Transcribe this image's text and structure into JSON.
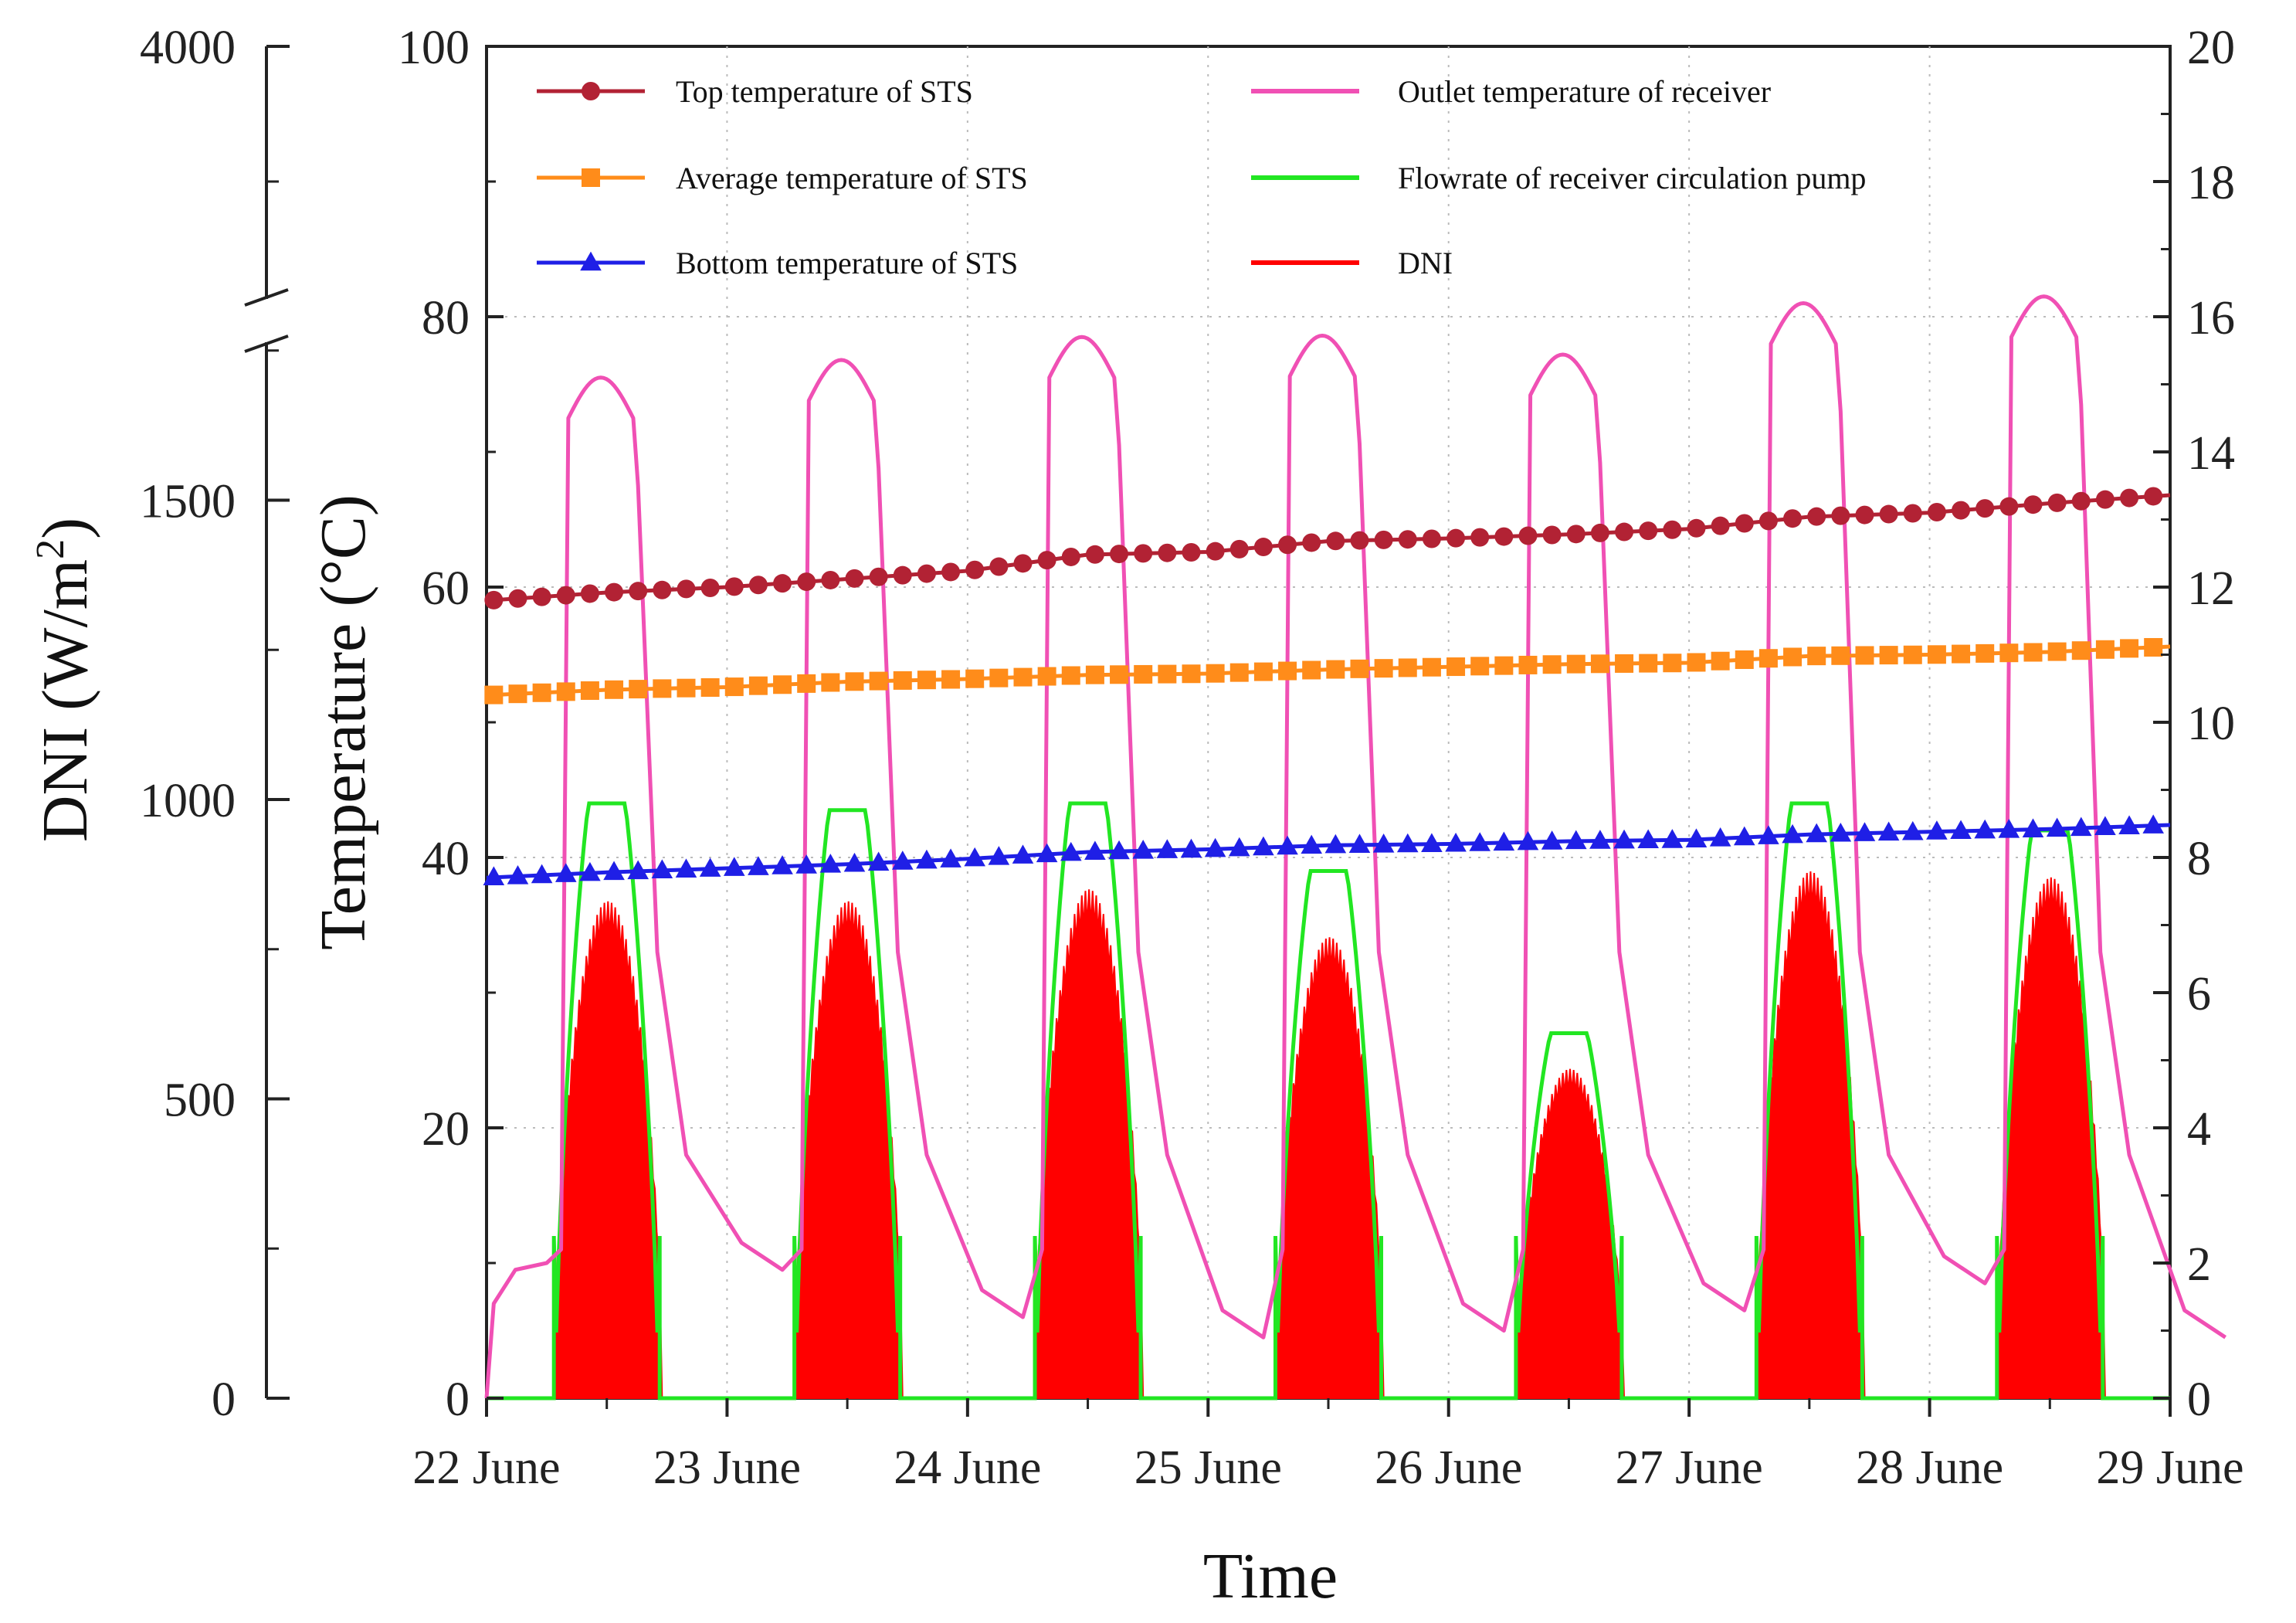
{
  "chart_data": {
    "type": "line",
    "x_unit": "day",
    "x_range": [
      0,
      7
    ],
    "x_ticks": [
      {
        "x": 0,
        "label": "22 June"
      },
      {
        "x": 1,
        "label": "23 June"
      },
      {
        "x": 2,
        "label": "24 June"
      },
      {
        "x": 3,
        "label": "25 June"
      },
      {
        "x": 4,
        "label": "26 June"
      },
      {
        "x": 5,
        "label": "27 June"
      },
      {
        "x": 6,
        "label": "28 June"
      },
      {
        "x": 7,
        "label": "29 June"
      }
    ],
    "xlabel": "Time",
    "ylabel_left_outer": "DNI (W/m",
    "ylabel_left_outer_sup": "2",
    "ylabel_left_outer_close": ")",
    "ylabel_left_inner": "Temperature (°C)",
    "ylim_temperature": [
      0,
      100
    ],
    "ylim_flowrate": [
      0,
      20
    ],
    "dni_axis": {
      "lower_range": [
        0,
        1800
      ],
      "upper_label": "4000",
      "break_between": [
        1800,
        4000
      ],
      "ticks": [
        "0",
        "500",
        "1000",
        "1500",
        "4000"
      ]
    },
    "temperature_ticks": [
      "0",
      "20",
      "40",
      "60",
      "80",
      "100"
    ],
    "flowrate_ticks": [
      "0",
      "2",
      "4",
      "6",
      "8",
      "10",
      "12",
      "14",
      "16",
      "18",
      "20"
    ],
    "grid": "dotted at major x and temperature ticks",
    "legend": [
      {
        "label": "Top temperature of STS",
        "color": "#B22234",
        "marker": "circle"
      },
      {
        "label": "Average temperature of STS",
        "color": "#FF8C1A",
        "marker": "square"
      },
      {
        "label": "Bottom temperature of STS",
        "color": "#1F1FE6",
        "marker": "triangle"
      },
      {
        "label": "Outlet temperature of receiver",
        "color": "#F050B4",
        "marker": "none"
      },
      {
        "label": "Flowrate of receiver circulation pump",
        "color": "#22E622",
        "marker": "none"
      },
      {
        "label": "DNI",
        "color": "#FF0000",
        "marker": "none"
      }
    ],
    "series": [
      {
        "name": "Top temperature of STS",
        "axis": "temperature",
        "points": [
          [
            0,
            59.0
          ],
          [
            0.5,
            59.6
          ],
          [
            1,
            60.0
          ],
          [
            1.5,
            60.6
          ],
          [
            2,
            61.2
          ],
          [
            2.5,
            62.4
          ],
          [
            3,
            62.6
          ],
          [
            3.5,
            63.4
          ],
          [
            4,
            63.6
          ],
          [
            4.5,
            63.9
          ],
          [
            5,
            64.3
          ],
          [
            5.5,
            65.2
          ],
          [
            6,
            65.5
          ],
          [
            6.5,
            66.2
          ],
          [
            7,
            66.8
          ]
        ]
      },
      {
        "name": "Average temperature of STS",
        "axis": "temperature",
        "points": [
          [
            0,
            52.0
          ],
          [
            0.5,
            52.4
          ],
          [
            1,
            52.6
          ],
          [
            1.5,
            53.0
          ],
          [
            2,
            53.2
          ],
          [
            2.5,
            53.5
          ],
          [
            3,
            53.6
          ],
          [
            3.5,
            53.9
          ],
          [
            4,
            54.1
          ],
          [
            4.5,
            54.3
          ],
          [
            5,
            54.4
          ],
          [
            5.5,
            54.9
          ],
          [
            6,
            55.0
          ],
          [
            6.5,
            55.2
          ],
          [
            7,
            55.6
          ]
        ]
      },
      {
        "name": "Bottom temperature of STS",
        "axis": "temperature",
        "points": [
          [
            0,
            38.5
          ],
          [
            0.5,
            38.9
          ],
          [
            1,
            39.2
          ],
          [
            1.5,
            39.5
          ],
          [
            2,
            39.9
          ],
          [
            2.5,
            40.4
          ],
          [
            3,
            40.6
          ],
          [
            3.5,
            40.9
          ],
          [
            4,
            41.0
          ],
          [
            4.5,
            41.2
          ],
          [
            5,
            41.3
          ],
          [
            5.5,
            41.7
          ],
          [
            6,
            41.9
          ],
          [
            6.5,
            42.1
          ],
          [
            7,
            42.4
          ]
        ]
      },
      {
        "name": "Outlet temperature of receiver",
        "axis": "temperature",
        "daily_peak": [
          75.5,
          76.8,
          78.5,
          78.6,
          77.2,
          81.0,
          81.5
        ],
        "night_min": [
          9.5,
          6.0,
          4.5,
          5.0,
          6.5,
          8.5,
          4.5
        ]
      },
      {
        "name": "Flowrate of receiver circulation pump",
        "axis": "flowrate",
        "daily_peak": [
          8.8,
          8.7,
          8.8,
          7.8,
          5.4,
          8.8,
          8.4
        ]
      },
      {
        "name": "DNI",
        "axis": "dni",
        "daily_peak": [
          830,
          830,
          850,
          770,
          550,
          880,
          870
        ]
      }
    ]
  }
}
